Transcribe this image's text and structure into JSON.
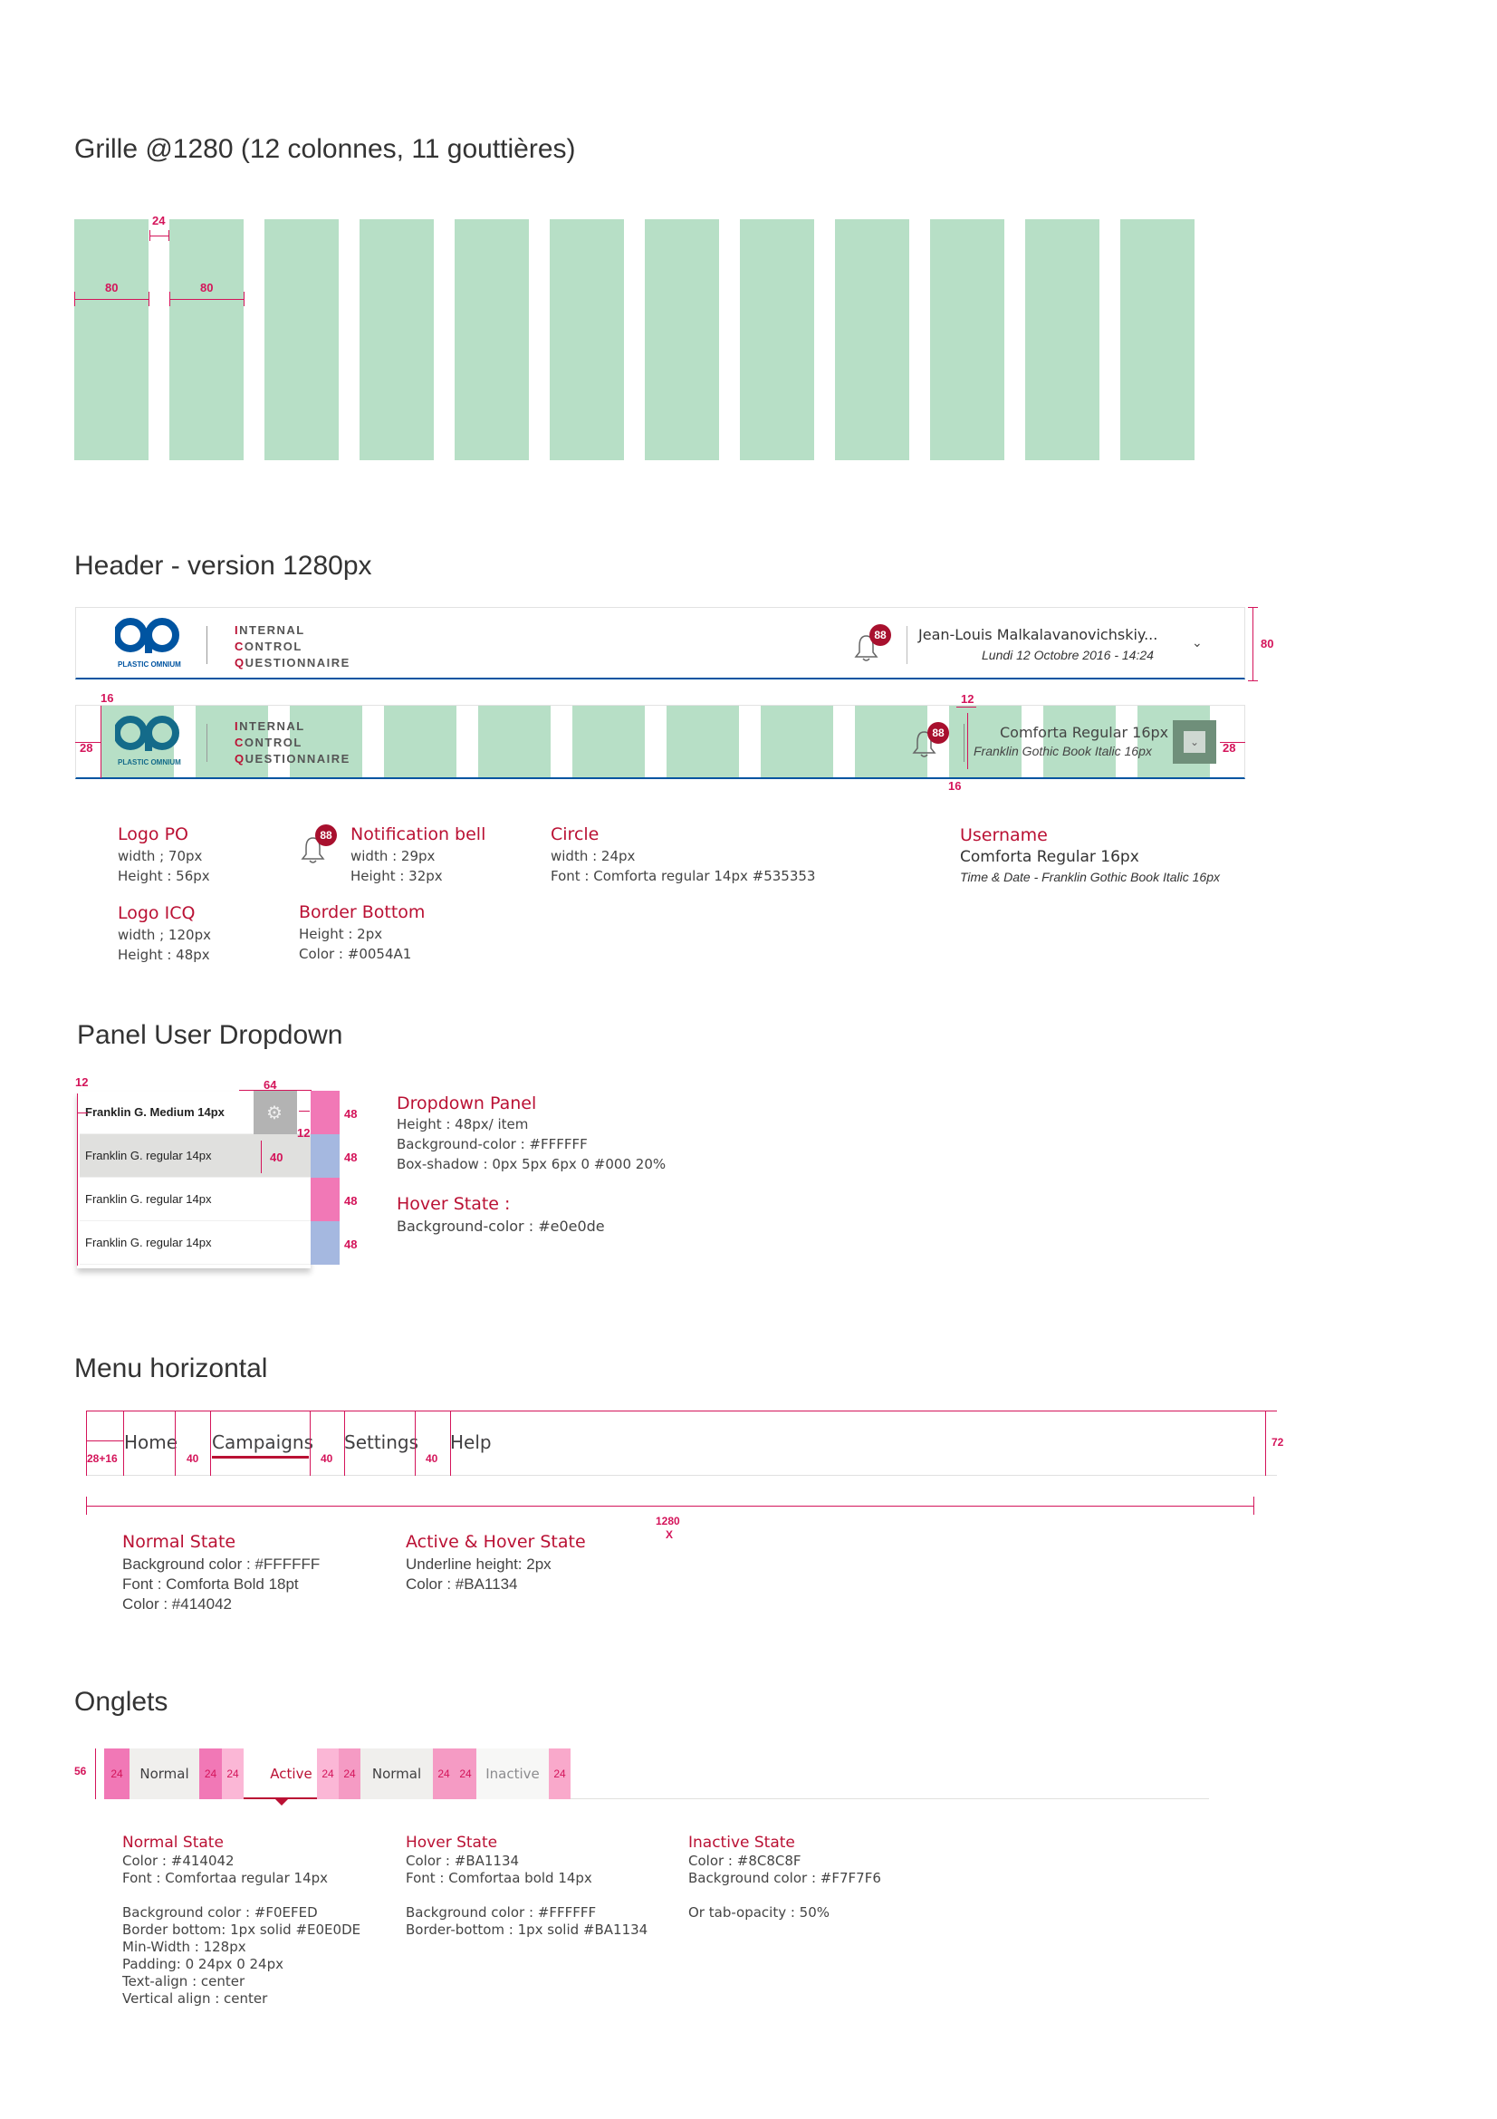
{
  "grid": {
    "title": "Grille @1280 (12 colonnes, 11 gouttières)",
    "gutter": "24",
    "col_width_1": "80",
    "col_width_2": "80",
    "columns": 12
  },
  "header": {
    "title": "Header - version 1280px",
    "logo_sub": "PLASTIC OMNIUM",
    "icq_1_cap": "I",
    "icq_1_rest": "NTERNAL",
    "icq_2_cap": "C",
    "icq_2_rest": "ONTROL",
    "icq_3_cap": "Q",
    "icq_3_rest": "UESTIONNAIRE",
    "badge": "88",
    "username": "Jean-Louis Malkalavanovichskiy...",
    "date": "Lundi 12 Octobre 2016 - 14:24",
    "height_dim": "80",
    "grid_username": "Comforta Regular 16px",
    "grid_date": "Franklin Gothic Book Italic 16px",
    "dim_16_top": "16",
    "dim_28_left": "28",
    "dim_12": "12",
    "dim_16_bottom": "16",
    "dim_28_right": "28"
  },
  "header_specs": {
    "logo_po": {
      "title": "Logo PO",
      "l1": "width ; 70px",
      "l2": "Height : 56px"
    },
    "logo_icq": {
      "title": "Logo ICQ",
      "l1": "width ; 120px",
      "l2": "Height : 48px"
    },
    "bell": {
      "title": "Notification bell",
      "l1": "width : 29px",
      "l2": "Height : 32px"
    },
    "border": {
      "title": "Border Bottom",
      "l1": "Height : 2px",
      "l2": "Color : #0054A1"
    },
    "circle": {
      "title": "Circle",
      "l1": "width : 24px",
      "l2": "Font : Comforta regular 14px #535353"
    },
    "username": {
      "title": "Username",
      "l1": "Comforta Regular 16px",
      "l2": "Time & Date - Franklin Gothic Book Italic 16px"
    }
  },
  "dropdown": {
    "title": "Panel User Dropdown",
    "dim_12": "12",
    "dim_64": "64",
    "dim_12b": "12",
    "dim_40": "40",
    "items": [
      "Franklin G. Medium 14px",
      "Franklin G. regular 14px",
      "Franklin G. regular 14px",
      "Franklin G. regular 14px"
    ],
    "strip_labels": [
      "48",
      "48",
      "48",
      "48"
    ],
    "spec_title": "Dropdown Panel",
    "spec_l1": "Height : 48px/  item",
    "spec_l2": "Background-color : #FFFFFF",
    "spec_l3": "Box-shadow : 0px 5px 6px 0 #000 20%",
    "hover_title": "Hover State :",
    "hover_l1": "Background-color : #e0e0de"
  },
  "menu": {
    "title": "Menu horizontal",
    "items": [
      "Home",
      "Campaigns",
      "Settings",
      "Help"
    ],
    "dim_left": "28+16",
    "dim_gap": [
      "40",
      "40",
      "40"
    ],
    "dim_height": "72",
    "dim_width": "1280",
    "dim_x": "X",
    "normal_title": "Normal State",
    "normal_l1": "Background color : #FFFFFF",
    "normal_l2": "Font : Comforta Bold 18pt",
    "normal_l3": "Color : #414042",
    "active_title": "Active & Hover State",
    "active_l1": "Underline height: 2px",
    "active_l2": "Color : #BA1134"
  },
  "tabs": {
    "title": "Onglets",
    "dim_height": "56",
    "pad": "24",
    "labels": [
      "Normal",
      "Active",
      "Normal",
      "Inactive"
    ],
    "normal_title": "Normal State",
    "normal_lines": [
      "Color : #414042",
      "Font : Comfortaa regular 14px",
      "",
      "Background color : #F0EFED",
      "Border bottom: 1px solid #E0E0DE",
      "Min-Width : 128px",
      "Padding: 0 24px 0 24px",
      "Text-align : center",
      "Vertical align : center"
    ],
    "hover_title": "Hover State",
    "hover_lines": [
      "Color : #BA1134",
      "Font : Comfortaa bold 14px",
      "",
      "Background color : #FFFFFF",
      "Border-bottom : 1px solid #BA1134"
    ],
    "inactive_title": "Inactive State",
    "inactive_lines": [
      "Color : #8C8C8F",
      "Background color : #F7F7F6",
      "",
      "Or tab-opacity : 50%"
    ]
  },
  "colors": {
    "accent": "#BA1134",
    "border_blue": "#0054A1",
    "grid_green": "#B7DFC6",
    "dim_pink": "#D4145A"
  }
}
